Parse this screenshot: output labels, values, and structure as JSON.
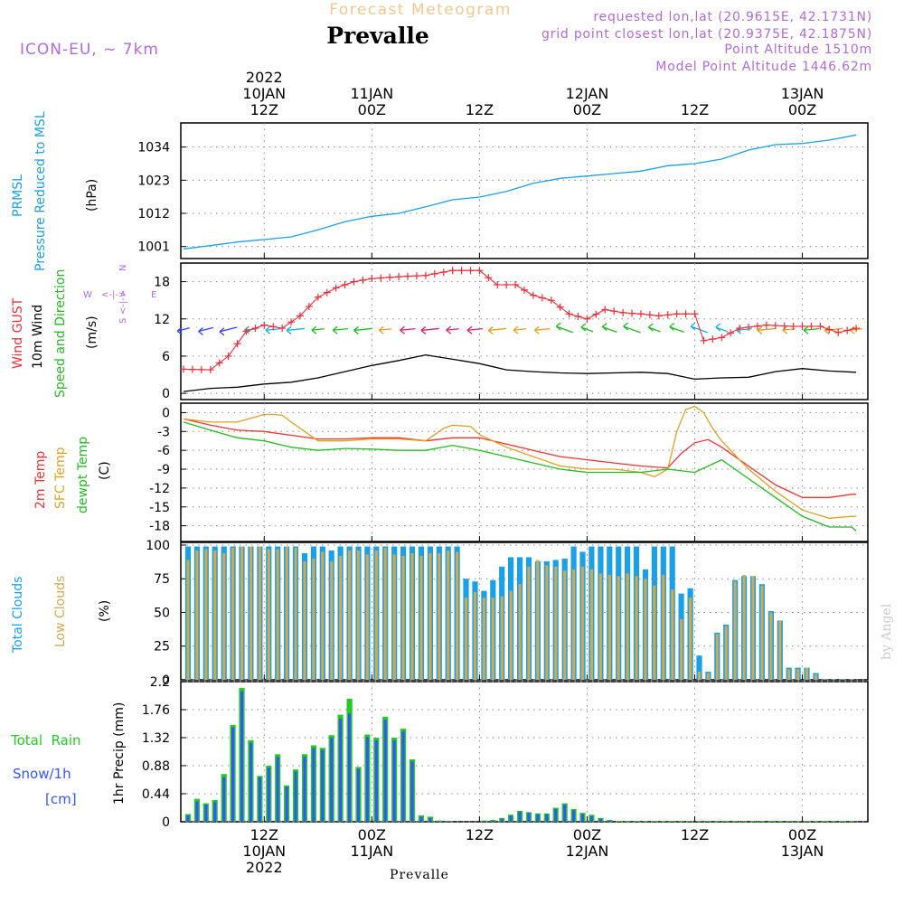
{
  "header": {
    "subtitle": "Forecast Meteogram",
    "location": "Prevalle",
    "model": "ICON-EU, ~ 7km",
    "requested": "requested lon,lat (20.9615E, 42.1731N)",
    "gridpoint": "grid point closest lon,lat (20.9375E, 42.1875N)",
    "point_alt": "Point Altitude 1510m",
    "model_alt": "Model Point Altitude 1446.62m",
    "footer_location": "Prevalle",
    "watermark": "by Angel"
  },
  "time_axis": {
    "hours_total": 63,
    "ticks": [
      {
        "hour": 9,
        "top": [
          "2022",
          "10JAN",
          "12Z"
        ],
        "bottom": [
          "12Z",
          "10JAN",
          "2022"
        ]
      },
      {
        "hour": 21,
        "top": [
          "11JAN",
          "00Z"
        ],
        "bottom": [
          "00Z",
          "11JAN"
        ]
      },
      {
        "hour": 33,
        "top": [
          "12Z"
        ],
        "bottom": [
          "12Z"
        ]
      },
      {
        "hour": 45,
        "top": [
          "12JAN",
          "00Z"
        ],
        "bottom": [
          "00Z",
          "12JAN"
        ]
      },
      {
        "hour": 57,
        "top": [
          "12Z"
        ],
        "bottom": [
          "12Z"
        ]
      },
      {
        "hour": 69,
        "top": [
          "13JAN",
          "00Z"
        ],
        "bottom": [
          "00Z",
          "13JAN"
        ]
      }
    ]
  },
  "colors": {
    "pressure": "#1aa0e6",
    "gust": "#ee2f3b",
    "wind": "#000000",
    "direction": "#22bb22",
    "label_magenta": "#b16bd9",
    "t2m": "#ee3333",
    "tsfc": "#e0a020",
    "dewpt": "#22bb22",
    "total_clouds": "#1aa0e6",
    "low_clouds": "#d4a84c",
    "rain": "#22cc22",
    "snow": "#3355ff",
    "subtitle": "#f0c890",
    "grid": "#888888"
  },
  "chart_data": [
    {
      "type": "line",
      "id": "pressure",
      "ylabel": [
        "PRMSL",
        "Pressure Reduced to MSL"
      ],
      "unit": "(hPa)",
      "ylim": [
        997,
        1042
      ],
      "yticks": [
        1001,
        1012,
        1023,
        1034
      ],
      "series": [
        {
          "name": "PRMSL",
          "x": [
            0,
            3,
            6,
            9,
            12,
            15,
            18,
            21,
            24,
            27,
            30,
            33,
            36,
            39,
            42,
            45,
            48,
            51,
            54,
            57,
            60,
            63,
            66,
            69,
            72,
            75
          ],
          "values": [
            1000.2,
            1001.3,
            1002.5,
            1003.3,
            1004.2,
            1006.5,
            1009.2,
            1011.0,
            1012.0,
            1014.2,
            1016.5,
            1017.4,
            1019.3,
            1022.0,
            1023.6,
            1024.4,
            1025.2,
            1026.0,
            1027.8,
            1028.5,
            1030.0,
            1033.0,
            1034.8,
            1035.2,
            1036.3,
            1038.0
          ]
        }
      ]
    },
    {
      "type": "line",
      "id": "wind",
      "ylabel_lines": [
        "Wind GUST",
        "10m Wind",
        "Speed and Direction"
      ],
      "unit": "(m/s)",
      "ylim": [
        -1,
        21
      ],
      "yticks": [
        0,
        6,
        12,
        18
      ],
      "compass": {
        "n": "N",
        "s": "S",
        "w": "W",
        "e": "E",
        "arrow": "<-|->"
      },
      "series": [
        {
          "name": "Wind GUST",
          "x": [
            0,
            3,
            5,
            7,
            9,
            11,
            13,
            15,
            17,
            19,
            21,
            24,
            27,
            30,
            33,
            35,
            37,
            39,
            41,
            43,
            45,
            47,
            49,
            51,
            53,
            55,
            57,
            58,
            60,
            62,
            65,
            68,
            71,
            73,
            75
          ],
          "values": [
            3.9,
            3.8,
            6.0,
            10.0,
            11.0,
            10.5,
            12.5,
            15.5,
            17.0,
            18.0,
            18.5,
            18.8,
            19.0,
            19.8,
            19.8,
            17.5,
            17.5,
            15.8,
            15.0,
            12.8,
            12.0,
            13.5,
            13.0,
            12.8,
            12.5,
            12.8,
            12.8,
            8.5,
            9.0,
            10.5,
            11.0,
            10.8,
            10.8,
            9.8,
            10.5
          ]
        },
        {
          "name": "10m Wind",
          "x": [
            0,
            3,
            6,
            9,
            12,
            15,
            18,
            21,
            24,
            27,
            30,
            33,
            36,
            39,
            42,
            45,
            48,
            51,
            54,
            57,
            60,
            63,
            66,
            69,
            72,
            75
          ],
          "values": [
            0.3,
            0.8,
            1.0,
            1.5,
            1.8,
            2.5,
            3.5,
            4.5,
            5.3,
            6.2,
            5.5,
            4.8,
            3.8,
            3.5,
            3.3,
            3.2,
            3.3,
            3.4,
            3.2,
            2.3,
            2.5,
            2.6,
            3.5,
            4.0,
            3.6,
            3.4
          ]
        }
      ],
      "direction_colors": [
        "#3344ff",
        "#3344ff",
        "#3344ff",
        "#1ab0e0",
        "#1ab0e0",
        "#1ab0e0",
        "#22bb22",
        "#22bb22",
        "#22bb22",
        "#e0a020",
        "#dd2266",
        "#dd2266",
        "#dd2266",
        "#dd2266",
        "#e0a020",
        "#e0a020",
        "#e0a020",
        "#22bb22",
        "#22bb22",
        "#22bb22",
        "#22bb22",
        "#22bb22",
        "#22bb22",
        "#1ab0e0",
        "#1ab0e0",
        "#1ab0e0",
        "#e0a020",
        "#e0a020",
        "#22bb22",
        "#e0a020",
        "#e0a020"
      ]
    },
    {
      "type": "line",
      "id": "temperature",
      "ylabel_lines": [
        "2m Temp",
        "SFC Temp",
        "dewpt Temp"
      ],
      "unit": "(C)",
      "ylim": [
        -20.5,
        1.5
      ],
      "yticks": [
        0,
        -3,
        -6,
        -9,
        -12,
        -15,
        -18
      ],
      "series": [
        {
          "name": "2m Temp",
          "x": [
            0,
            3,
            6,
            9,
            12,
            15,
            18,
            21,
            24,
            27,
            30,
            33,
            36,
            39,
            42,
            45,
            48,
            51,
            54,
            55.5,
            57,
            58.5,
            60,
            63,
            66,
            69,
            72,
            74.5,
            75
          ],
          "values": [
            -1.0,
            -2.0,
            -2.8,
            -3.0,
            -3.6,
            -4.2,
            -4.2,
            -4.0,
            -4.0,
            -4.5,
            -4.0,
            -4.0,
            -5.0,
            -6.0,
            -7.0,
            -7.5,
            -8.0,
            -8.5,
            -8.8,
            -6.5,
            -4.8,
            -4.3,
            -5.5,
            -8.5,
            -11.5,
            -13.5,
            -13.5,
            -13.0,
            -13.0
          ]
        },
        {
          "name": "SFC Temp",
          "x": [
            0,
            3,
            6,
            9,
            10,
            11,
            12,
            15,
            18,
            21,
            24,
            27,
            29,
            30,
            32,
            33,
            36,
            39,
            42,
            45,
            48,
            51,
            52.5,
            54,
            55,
            56,
            57,
            58,
            59,
            60,
            63,
            66,
            69,
            72,
            74.5,
            75
          ],
          "values": [
            -1.0,
            -1.5,
            -1.5,
            -0.3,
            -0.3,
            -0.4,
            -1.5,
            -4.5,
            -4.5,
            -4.2,
            -4.2,
            -4.5,
            -2.5,
            -2.0,
            -2.2,
            -3.5,
            -5.5,
            -7.0,
            -8.5,
            -9.0,
            -9.0,
            -9.5,
            -10.2,
            -9.0,
            -3.0,
            0.5,
            1.0,
            0.0,
            -2.5,
            -4.5,
            -9.0,
            -12.5,
            -15.5,
            -16.8,
            -16.5,
            -16.5
          ]
        },
        {
          "name": "dewpt Temp",
          "x": [
            0,
            3,
            6,
            9,
            12,
            15,
            18,
            21,
            24,
            27,
            30,
            33,
            36,
            39,
            42,
            45,
            48,
            51,
            54,
            57,
            60,
            63,
            66,
            69,
            72,
            74.5,
            75
          ],
          "values": [
            -1.5,
            -2.8,
            -4.0,
            -4.5,
            -5.5,
            -6.0,
            -5.7,
            -5.8,
            -6.0,
            -6.0,
            -5.2,
            -6.0,
            -7.0,
            -8.0,
            -9.0,
            -9.5,
            -9.5,
            -9.5,
            -9.0,
            -9.5,
            -7.5,
            -10.5,
            -13.5,
            -16.5,
            -18.2,
            -18.2,
            -18.8
          ]
        }
      ]
    },
    {
      "type": "bar",
      "id": "clouds",
      "ylabel_lines": [
        "Total Clouds",
        "Low Clouds"
      ],
      "unit": "(%)",
      "ylim": [
        0,
        102
      ],
      "yticks": [
        0,
        25,
        50,
        75,
        100
      ],
      "x": [
        0,
        1,
        2,
        3,
        4,
        5,
        6,
        7,
        8,
        9,
        10,
        11,
        12,
        13,
        14,
        15,
        16,
        17,
        18,
        19,
        20,
        21,
        22,
        23,
        24,
        25,
        26,
        27,
        28,
        29,
        30,
        31,
        32,
        33,
        34,
        35,
        36,
        37,
        38,
        39,
        40,
        41,
        42,
        43,
        44,
        45,
        46,
        47,
        48,
        49,
        50,
        51,
        52,
        53,
        54,
        55,
        56,
        57,
        58,
        59,
        60,
        61,
        62,
        63,
        64,
        65,
        66,
        67,
        68,
        69,
        70,
        71,
        72,
        73,
        74
      ],
      "series": [
        {
          "name": "Total Clouds",
          "values": [
            99,
            99,
            99,
            99,
            99,
            99,
            99,
            99,
            99,
            99,
            99,
            99,
            99,
            94,
            99,
            99,
            96,
            99,
            99,
            99,
            99,
            99,
            99,
            99,
            99,
            99,
            99,
            99,
            99,
            99,
            99,
            75,
            73,
            66,
            74,
            84,
            91,
            91,
            91,
            88,
            88,
            89,
            90,
            99,
            95,
            99,
            99,
            99,
            99,
            99,
            99,
            82,
            99,
            99,
            99,
            64,
            68,
            18,
            6,
            35,
            41,
            74,
            77,
            77,
            71,
            51,
            44,
            9,
            9,
            9,
            5,
            0.5,
            0.5,
            0.5,
            0.5
          ]
        },
        {
          "name": "Low Clouds",
          "values": [
            89,
            96,
            97,
            96,
            94,
            98,
            99,
            99,
            99,
            97,
            97,
            99,
            98,
            88,
            90,
            95,
            88,
            92,
            96,
            96,
            93,
            96,
            98,
            93,
            92,
            94,
            92,
            94,
            94,
            96,
            95,
            61,
            65,
            61,
            61,
            62,
            66,
            71,
            84,
            89,
            85,
            84,
            81,
            82,
            84,
            82,
            79,
            78,
            77,
            79,
            77,
            75,
            70,
            78,
            67,
            45,
            61,
            6,
            5,
            34,
            40,
            73,
            78,
            77,
            70,
            50,
            44,
            8,
            8,
            9,
            4,
            0.5,
            0.5,
            0.5,
            0.5
          ]
        }
      ]
    },
    {
      "type": "bar",
      "id": "precip",
      "ylabel_lines": [
        "Total  Rain",
        "Snow/1h",
        "[cm]"
      ],
      "unit": "1hr Precip (mm)",
      "ylim": [
        0,
        2.2
      ],
      "yticks": [
        0,
        0.44,
        0.88,
        1.32,
        1.76,
        2.2
      ],
      "yticklabels": [
        "0",
        "0.44",
        "0.88",
        "1.32",
        "1.76",
        "2.2"
      ],
      "x": [
        0,
        1,
        2,
        3,
        4,
        5,
        6,
        7,
        8,
        9,
        10,
        11,
        12,
        13,
        14,
        15,
        16,
        17,
        18,
        19,
        20,
        21,
        22,
        23,
        24,
        25,
        26,
        27,
        28,
        29,
        30,
        31,
        32,
        33,
        34,
        35,
        36,
        37,
        38,
        39,
        40,
        41,
        42,
        43,
        44,
        45,
        46,
        47,
        48,
        49,
        50,
        51,
        52,
        53,
        54,
        55,
        56,
        57,
        58,
        59,
        60,
        61,
        62,
        63,
        64,
        65,
        66,
        67,
        68,
        69,
        70,
        71,
        72,
        73,
        74
      ],
      "series": [
        {
          "name": "Total Rain",
          "values": [
            0.12,
            0.36,
            0.29,
            0.34,
            0.75,
            1.52,
            2.1,
            1.28,
            0.72,
            0.88,
            1.06,
            0.57,
            0.82,
            1.06,
            1.2,
            1.16,
            1.36,
            1.68,
            1.93,
            0.86,
            1.37,
            1.32,
            1.65,
            1.32,
            1.46,
            0.98,
            0.1,
            0.08,
            0.02,
            0.01,
            0.0,
            0.0,
            0.0,
            0.02,
            0.03,
            0.06,
            0.11,
            0.17,
            0.15,
            0.13,
            0.13,
            0.22,
            0.29,
            0.2,
            0.14,
            0.11,
            0.06,
            0.03,
            0.01,
            0.01,
            0.01,
            0.01,
            0.01,
            0.01,
            0.01,
            0.01,
            0.01,
            0.01,
            0.01,
            0.01,
            0.01,
            0.01,
            0.01,
            0.01,
            0.01,
            0.01,
            0.01,
            0.01,
            0.01,
            0.01,
            0.01,
            0.01,
            0.01,
            0.01,
            0.01
          ]
        },
        {
          "name": "Snow/1h",
          "values": [
            0.1,
            0.32,
            0.27,
            0.31,
            0.7,
            1.48,
            2.05,
            1.24,
            0.7,
            0.85,
            1.02,
            0.55,
            0.79,
            1.02,
            1.16,
            1.13,
            1.32,
            1.62,
            1.7,
            0.83,
            1.33,
            1.28,
            1.6,
            1.28,
            1.42,
            0.95,
            0.08,
            0.06,
            0.01,
            0.01,
            0.0,
            0.0,
            0.0,
            0.01,
            0.02,
            0.05,
            0.1,
            0.16,
            0.14,
            0.12,
            0.12,
            0.2,
            0.27,
            0.18,
            0.12,
            0.09,
            0.05,
            0.02,
            0.0,
            0.0,
            0.0,
            0.0,
            0.0,
            0.0,
            0.0,
            0.0,
            0.0,
            0.0,
            0.0,
            0.0,
            0.0,
            0.0,
            0.0,
            0.0,
            0.0,
            0.0,
            0.0,
            0.0,
            0.0,
            0.0,
            0.0,
            0.0,
            0.0,
            0.0,
            0.0
          ]
        }
      ]
    }
  ]
}
